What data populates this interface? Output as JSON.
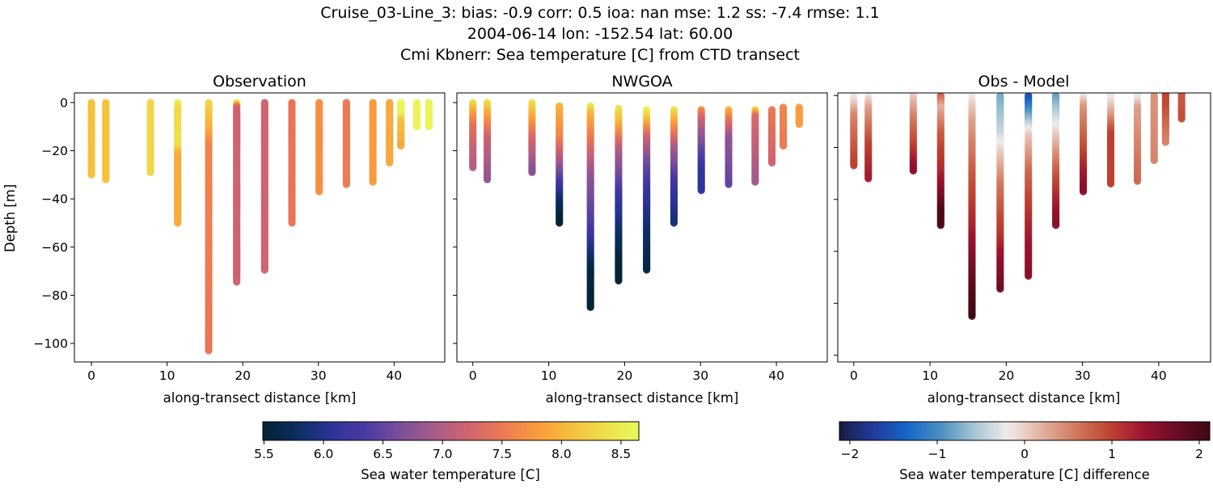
{
  "title_lines": [
    "Cruise_03-Line_3: bias: -0.9  corr: 0.5  ioa: nan  mse: 1.2  ss: -7.4  rmse: 1.1",
    "2004-06-14 lon: -152.54 lat: 60.00",
    "Cmi Kbnerr: Sea temperature [C] from CTD transect"
  ],
  "chart_data": [
    {
      "type": "scatter",
      "title": "Observation",
      "xlabel": "along-transect distance [km]",
      "ylabel": "Depth [m]",
      "xlim": [
        -2.25,
        46.7
      ],
      "ylim": [
        -107.7,
        4
      ],
      "xticks": [
        0,
        10,
        20,
        30,
        40
      ],
      "yticks": [
        0,
        -20,
        -40,
        -60,
        -80,
        -100
      ],
      "ytick_labels": [
        "0",
        "−20",
        "−40",
        "−60",
        "−80",
        "−100"
      ],
      "colormap": "thermal",
      "clim": [
        5.49,
        8.65
      ],
      "casts": [
        {
          "x": 0,
          "profile": [
            [
              0,
              8.1
            ],
            [
              30,
              8.1
            ]
          ]
        },
        {
          "x": 1.9,
          "profile": [
            [
              0,
              8.1
            ],
            [
              32,
              8.1
            ]
          ]
        },
        {
          "x": 7.8,
          "profile": [
            [
              0,
              8.3
            ],
            [
              29,
              8.3
            ]
          ]
        },
        {
          "x": 11.4,
          "profile": [
            [
              0,
              8.6
            ],
            [
              3,
              8.3
            ],
            [
              18,
              8.4
            ],
            [
              22,
              7.9
            ],
            [
              50,
              7.9
            ]
          ]
        },
        {
          "x": 15.5,
          "profile": [
            [
              0,
              8.3
            ],
            [
              12,
              7.9
            ],
            [
              18,
              7.6
            ],
            [
              103,
              7.45
            ]
          ]
        },
        {
          "x": 19.2,
          "profile": [
            [
              0,
              8.6
            ],
            [
              2,
              7.3
            ],
            [
              4,
              7.2
            ],
            [
              74.5,
              7.2
            ]
          ]
        },
        {
          "x": 22.9,
          "profile": [
            [
              0,
              7.2
            ],
            [
              69.5,
              7.2
            ]
          ]
        },
        {
          "x": 26.5,
          "profile": [
            [
              0,
              7.45
            ],
            [
              50,
              7.45
            ]
          ]
        },
        {
          "x": 30.1,
          "profile": [
            [
              0,
              7.7
            ],
            [
              37,
              7.7
            ]
          ]
        },
        {
          "x": 33.7,
          "profile": [
            [
              0,
              7.5
            ],
            [
              34,
              7.5
            ]
          ]
        },
        {
          "x": 37.2,
          "profile": [
            [
              0,
              7.8
            ],
            [
              33,
              7.8
            ]
          ]
        },
        {
          "x": 39.4,
          "profile": [
            [
              0,
              7.9
            ],
            [
              25,
              7.9
            ]
          ]
        },
        {
          "x": 40.9,
          "profile": [
            [
              0,
              8.6
            ],
            [
              5,
              8.6
            ],
            [
              8,
              8.1
            ],
            [
              18,
              7.9
            ]
          ]
        },
        {
          "x": 43.0,
          "profile": [
            [
              0,
              8.6
            ],
            [
              10,
              8.6
            ]
          ]
        },
        {
          "x": 44.6,
          "profile": [
            [
              0,
              8.6
            ],
            [
              10,
              8.6
            ]
          ]
        }
      ]
    },
    {
      "type": "scatter",
      "title": "NWGOA",
      "xlabel": "along-transect distance [km]",
      "xlim": [
        -2.1,
        46.7
      ],
      "ylim": [
        -107.7,
        4
      ],
      "xticks": [
        0,
        10,
        20,
        30,
        40
      ],
      "yticks": [
        0,
        -20,
        -40,
        -60,
        -80,
        -100
      ],
      "colormap": "thermal",
      "clim": [
        5.49,
        8.65
      ],
      "casts": [
        {
          "x": 0,
          "profile": [
            [
              0,
              8.4
            ],
            [
              3,
              8.0
            ],
            [
              10,
              7.4
            ],
            [
              27,
              7.0
            ]
          ]
        },
        {
          "x": 1.9,
          "profile": [
            [
              0,
              8.4
            ],
            [
              5,
              7.9
            ],
            [
              15,
              7.2
            ],
            [
              32,
              6.8
            ]
          ]
        },
        {
          "x": 7.8,
          "profile": [
            [
              0,
              8.4
            ],
            [
              5,
              8.0
            ],
            [
              15,
              7.3
            ],
            [
              29,
              6.7
            ]
          ]
        },
        {
          "x": 11.4,
          "profile": [
            [
              1.5,
              8.0
            ],
            [
              15,
              7.6
            ],
            [
              25,
              6.9
            ],
            [
              38,
              6.0
            ],
            [
              43,
              5.7
            ],
            [
              50,
              5.5
            ]
          ]
        },
        {
          "x": 15.5,
          "profile": [
            [
              1.5,
              8.5
            ],
            [
              5,
              8.0
            ],
            [
              15,
              7.5
            ],
            [
              30,
              6.8
            ],
            [
              50,
              6.4
            ],
            [
              60,
              6.0
            ],
            [
              70,
              5.6
            ],
            [
              85,
              5.5
            ]
          ]
        },
        {
          "x": 19.2,
          "profile": [
            [
              2.5,
              8.4
            ],
            [
              10,
              7.9
            ],
            [
              20,
              7.0
            ],
            [
              40,
              6.2
            ],
            [
              55,
              5.8
            ],
            [
              65,
              5.55
            ],
            [
              74,
              5.5
            ]
          ]
        },
        {
          "x": 22.9,
          "profile": [
            [
              3,
              8.6
            ],
            [
              8,
              8.0
            ],
            [
              15,
              7.2
            ],
            [
              25,
              6.6
            ],
            [
              40,
              6.1
            ],
            [
              55,
              5.8
            ],
            [
              69.5,
              5.6
            ]
          ]
        },
        {
          "x": 26.5,
          "profile": [
            [
              3,
              8.4
            ],
            [
              8,
              7.9
            ],
            [
              20,
              6.9
            ],
            [
              35,
              6.2
            ],
            [
              50,
              5.9
            ]
          ]
        },
        {
          "x": 30.1,
          "profile": [
            [
              3,
              7.7
            ],
            [
              7,
              7.2
            ],
            [
              20,
              6.5
            ],
            [
              30,
              6.1
            ],
            [
              36.5,
              6.1
            ]
          ]
        },
        {
          "x": 33.7,
          "profile": [
            [
              3,
              8.0
            ],
            [
              7,
              7.5
            ],
            [
              15,
              6.8
            ],
            [
              34,
              6.5
            ]
          ]
        },
        {
          "x": 37.2,
          "profile": [
            [
              3,
              8.3
            ],
            [
              6,
              7.3
            ],
            [
              33,
              6.9
            ]
          ]
        },
        {
          "x": 39.4,
          "profile": [
            [
              3,
              7.5
            ],
            [
              25,
              7.2
            ]
          ]
        },
        {
          "x": 40.9,
          "profile": [
            [
              2,
              7.6
            ],
            [
              18,
              7.5
            ]
          ]
        },
        {
          "x": 43.0,
          "profile": [
            [
              2,
              7.8
            ],
            [
              9,
              7.8
            ]
          ]
        }
      ]
    },
    {
      "type": "scatter",
      "title": "Obs - Model",
      "xlabel": "along-transect distance [km]",
      "xlim": [
        -2.1,
        46.8
      ],
      "ylim": [
        -102.6,
        1
      ],
      "xticks": [
        0,
        10,
        20,
        30,
        40
      ],
      "yticks": [
        0,
        -20,
        -40,
        -60,
        -80,
        -100
      ],
      "colormap": "balance",
      "clim": [
        -2.12,
        2.12
      ],
      "casts": [
        {
          "x": 0,
          "profile": [
            [
              0,
              -0.2
            ],
            [
              3,
              0
            ],
            [
              8,
              0.5
            ],
            [
              27,
              1.0
            ]
          ]
        },
        {
          "x": 1.9,
          "profile": [
            [
              0,
              -0.2
            ],
            [
              5,
              0.3
            ],
            [
              20,
              1.0
            ],
            [
              32,
              1.3
            ]
          ]
        },
        {
          "x": 7.8,
          "profile": [
            [
              0,
              0
            ],
            [
              8,
              0.5
            ],
            [
              20,
              1.0
            ],
            [
              29,
              1.5
            ]
          ]
        },
        {
          "x": 11.4,
          "profile": [
            [
              0,
              0.8
            ],
            [
              5,
              0.2
            ],
            [
              15,
              0.8
            ],
            [
              30,
              1.2
            ],
            [
              38,
              1.6
            ],
            [
              45,
              2.0
            ],
            [
              50,
              2.0
            ]
          ]
        },
        {
          "x": 15.5,
          "profile": [
            [
              0,
              -0.2
            ],
            [
              10,
              0.3
            ],
            [
              30,
              0.8
            ],
            [
              50,
              1.2
            ],
            [
              60,
              1.5
            ],
            [
              75,
              1.9
            ],
            [
              85.4,
              2.1
            ]
          ]
        },
        {
          "x": 19.2,
          "profile": [
            [
              0,
              -0.8
            ],
            [
              15,
              -0.4
            ],
            [
              22,
              0
            ],
            [
              35,
              0.6
            ],
            [
              55,
              1.1
            ],
            [
              65,
              1.5
            ],
            [
              74.7,
              1.7
            ]
          ]
        },
        {
          "x": 22.9,
          "profile": [
            [
              0,
              -1.6
            ],
            [
              10,
              -0.6
            ],
            [
              15,
              0
            ],
            [
              30,
              0.7
            ],
            [
              50,
              1.2
            ],
            [
              60,
              1.4
            ],
            [
              69.6,
              1.5
            ]
          ]
        },
        {
          "x": 26.5,
          "profile": [
            [
              0,
              -0.9
            ],
            [
              10,
              -0.3
            ],
            [
              15,
              0
            ],
            [
              30,
              0.8
            ],
            [
              45,
              1.4
            ],
            [
              50,
              1.5
            ]
          ]
        },
        {
          "x": 30.1,
          "profile": [
            [
              0,
              -0.2
            ],
            [
              5,
              0.4
            ],
            [
              20,
              0.9
            ],
            [
              30,
              1.3
            ],
            [
              37,
              1.5
            ]
          ]
        },
        {
          "x": 33.7,
          "profile": [
            [
              0,
              -0.3
            ],
            [
              6,
              0.2
            ],
            [
              15,
              1.0
            ],
            [
              34,
              1.0
            ]
          ]
        },
        {
          "x": 37.2,
          "profile": [
            [
              0,
              -0.3
            ],
            [
              5,
              0.3
            ],
            [
              33,
              0.7
            ]
          ]
        },
        {
          "x": 39.4,
          "profile": [
            [
              0,
              0.4
            ],
            [
              25,
              0.5
            ]
          ]
        },
        {
          "x": 40.9,
          "profile": [
            [
              -1,
              1.0
            ],
            [
              5,
              0.9
            ],
            [
              18,
              0.5
            ]
          ]
        },
        {
          "x": 43.0,
          "profile": [
            [
              -1,
              0.8
            ],
            [
              9,
              0.9
            ]
          ]
        }
      ]
    }
  ],
  "colorbars": [
    {
      "label": "Sea water temperature [C]",
      "colormap": "thermal",
      "range": [
        5.49,
        8.65
      ],
      "ticks": [
        5.5,
        6.0,
        6.5,
        7.0,
        7.5,
        8.0,
        8.5
      ],
      "tick_labels": [
        "5.5",
        "6.0",
        "6.5",
        "7.0",
        "7.5",
        "8.0",
        "8.5"
      ]
    },
    {
      "label": "Sea water temperature [C] difference",
      "colormap": "balance",
      "range": [
        -2.12,
        2.12
      ],
      "ticks": [
        -2,
        -1,
        0,
        1,
        2
      ],
      "tick_labels": [
        "−2",
        "−1",
        "0",
        "1",
        "2"
      ]
    }
  ],
  "colormaps": {
    "thermal": [
      "#042333",
      "#0b2e60",
      "#2c3395",
      "#4a3aa3",
      "#7a4f9a",
      "#a65b8a",
      "#d0646f",
      "#ec7a54",
      "#f99a3d",
      "#f6bf3c",
      "#eede4c",
      "#e8fa5b"
    ],
    "balance": [
      "#181c43",
      "#223a9a",
      "#1565c8",
      "#4a90bf",
      "#a7c5d3",
      "#f1ecec",
      "#e2b2a0",
      "#d27a5f",
      "#bf4531",
      "#9e1430",
      "#6a0c24",
      "#3c0912"
    ]
  }
}
